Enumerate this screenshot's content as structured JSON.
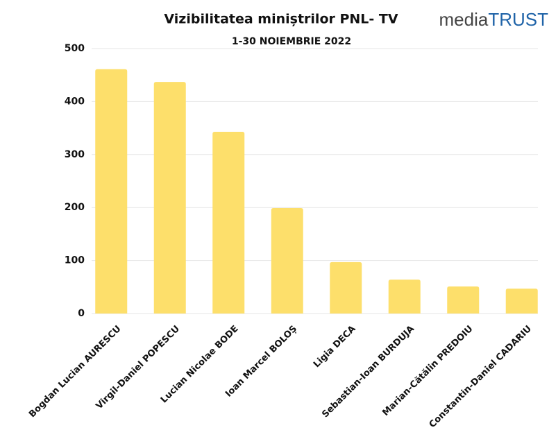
{
  "chart_data": {
    "type": "bar",
    "title": "Vizibilitatea miniștrilor PNL- TV",
    "subtitle": "1-30 NOIEMBRIE 2022",
    "logo": {
      "part1": "media",
      "part2": "TRUST"
    },
    "categories": [
      "Bogdan Lucian AURESCU",
      "Virgil-Daniel POPESCU",
      "Lucian Nicolae BODE",
      "Ioan Marcel BOLOȘ",
      "Ligia DECA",
      "Sebastian-Ioan BURDUJA",
      "Marian-Cătălin PREDOIU",
      "Constantin-Daniel CADARIU"
    ],
    "values": [
      461,
      437,
      343,
      199,
      97,
      64,
      51,
      47
    ],
    "color": "#fddf6b",
    "ylim": [
      0,
      500
    ],
    "yticks": [
      0,
      100,
      200,
      300,
      400,
      500
    ],
    "grid": true
  }
}
